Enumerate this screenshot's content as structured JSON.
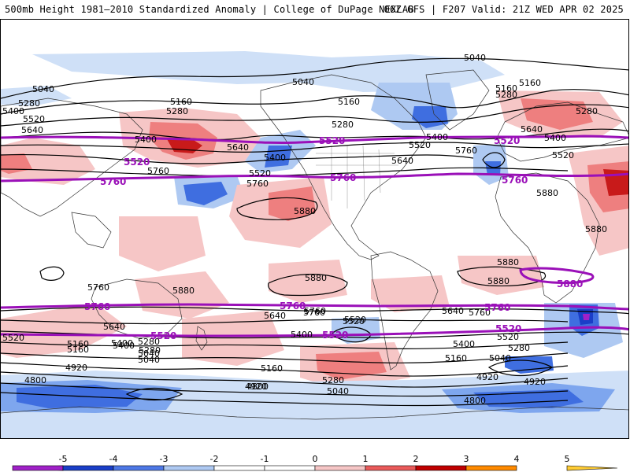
{
  "header": {
    "left_title": "500mb Height 1981–2010 Standardized Anomaly | College of DuPage NEXLAB",
    "right_title": "06Z GFS | F207 Valid: 21Z WED APR 02 2025"
  },
  "colors": {
    "contour_black": "#000000",
    "contour_purple": "#9a10b8",
    "land_outline": "#333333"
  },
  "colorbar": {
    "ticks": [
      "-5",
      "-4",
      "-3",
      "-2",
      "-1",
      "0",
      "1",
      "2",
      "3",
      "4",
      "5"
    ],
    "bins": [
      {
        "from": -5,
        "to": -4,
        "color": "#a020c8"
      },
      {
        "from": -4,
        "to": -3,
        "color": "#1a3ec8"
      },
      {
        "from": -3,
        "to": -2,
        "color": "#4d78e6"
      },
      {
        "from": -2,
        "to": -1,
        "color": "#aec9f2"
      },
      {
        "from": -1,
        "to": 0,
        "color": "#ffffff"
      },
      {
        "from": 0,
        "to": 1,
        "color": "#ffffff"
      },
      {
        "from": 1,
        "to": 2,
        "color": "#f6c6c6"
      },
      {
        "from": 2,
        "to": 3,
        "color": "#ea5a5a"
      },
      {
        "from": 3,
        "to": 4,
        "color": "#c00000"
      },
      {
        "from": 4,
        "to": 5,
        "color": "#ff8a00"
      },
      {
        "from": 5,
        "to": 6,
        "color": "#ffcc33"
      }
    ],
    "left_triangle_color": "#e673e6",
    "right_triangle_color": "#ffcc33"
  },
  "contour_labels": {
    "black": [
      "5040",
      "5040",
      "5040",
      "5280",
      "5160",
      "5400",
      "5280",
      "5520",
      "5640",
      "5400",
      "5160",
      "5280",
      "5760",
      "5640",
      "5400",
      "5520",
      "5760",
      "5880",
      "5160",
      "5280",
      "5400",
      "5520",
      "5640",
      "5280",
      "5160",
      "5400",
      "5520",
      "5640",
      "5760",
      "5880",
      "5160",
      "5280",
      "5400",
      "5640",
      "5520",
      "5880",
      "5880",
      "5880",
      "5760",
      "5880",
      "5880",
      "5760",
      "5640",
      "5520",
      "5400",
      "5280",
      "5160",
      "5040",
      "4920",
      "4800",
      "5520",
      "5760",
      "5640",
      "5400",
      "5160",
      "5280",
      "5040",
      "4920",
      "4800",
      "5040",
      "5160",
      "5280",
      "5400",
      "5520",
      "5640",
      "5760",
      "5160",
      "5280",
      "5400",
      "5520",
      "5040",
      "4920",
      "4920",
      "4800",
      "5880",
      "5880",
      "5880",
      "5760"
    ],
    "purple": [
      "5520",
      "5760",
      "5520",
      "5760",
      "5520",
      "5760",
      "5880",
      "5760",
      "5760",
      "5520",
      "5520",
      "5520",
      "5760"
    ]
  }
}
